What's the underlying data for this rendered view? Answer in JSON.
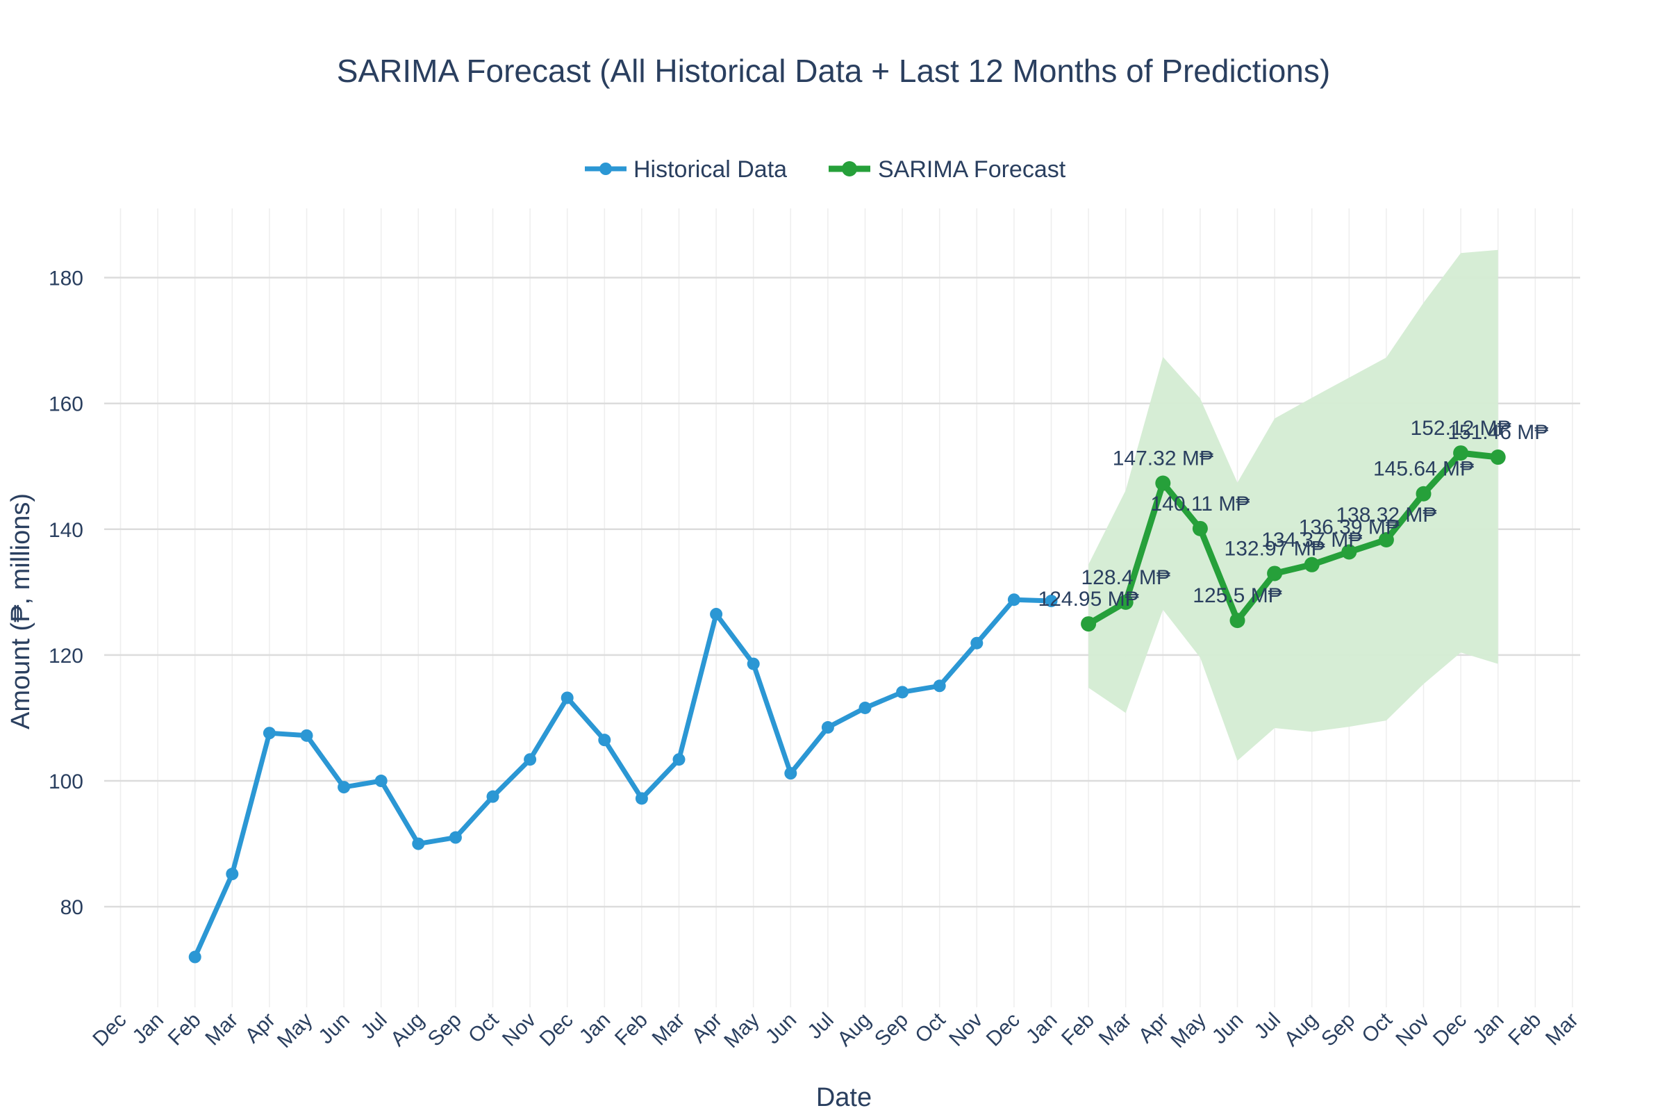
{
  "chart_data": {
    "type": "line",
    "title": "SARIMA Forecast (All Historical Data + Last 12 Months of Predictions)",
    "xlabel": "Date",
    "ylabel": "Amount (₱, millions)",
    "legend_position": "top-center",
    "grid": true,
    "xlim": [
      "2022-12",
      "2026-03"
    ],
    "ylim": [
      64,
      191
    ],
    "x_ticks": [
      "Dec",
      "Jan",
      "Feb",
      "Mar",
      "Apr",
      "May",
      "Jun",
      "Jul",
      "Aug",
      "Sep",
      "Oct",
      "Nov",
      "Dec",
      "Jan",
      "Feb",
      "Mar",
      "Apr",
      "May",
      "Jun",
      "Jul",
      "Aug",
      "Sep",
      "Oct",
      "Nov",
      "Dec",
      "Jan",
      "Feb",
      "Mar",
      "Apr",
      "May",
      "Jun",
      "Jul",
      "Aug",
      "Sep",
      "Oct",
      "Nov",
      "Dec",
      "Jan",
      "Feb",
      "Mar"
    ],
    "y_ticks": [
      80,
      100,
      120,
      140,
      160,
      180
    ],
    "colors": {
      "historical": "#2b97d4",
      "forecast": "#26a03a",
      "band": "#d4ecd3",
      "grid": "#dcdcdc",
      "minor_grid": "#eeeeee",
      "text": "#2a3f5f"
    },
    "series": [
      {
        "name": "Historical Data",
        "x": [
          "2023-02",
          "2023-03",
          "2023-04",
          "2023-05",
          "2023-06",
          "2023-07",
          "2023-08",
          "2023-09",
          "2023-10",
          "2023-11",
          "2023-12",
          "2024-01",
          "2024-02",
          "2024-03",
          "2024-04",
          "2024-05",
          "2024-06",
          "2024-07",
          "2024-08",
          "2024-09",
          "2024-10",
          "2024-11",
          "2024-12",
          "2025-01"
        ],
        "y": [
          72,
          85.2,
          107.6,
          107.2,
          99,
          100,
          90,
          91,
          97.5,
          103.4,
          113.2,
          106.5,
          97.2,
          103.4,
          126.5,
          118.6,
          101.2,
          108.5,
          111.6,
          114.1,
          115.1,
          121.9,
          128.8,
          128.6
        ]
      },
      {
        "name": "SARIMA Forecast",
        "x": [
          "2025-02",
          "2025-03",
          "2025-04",
          "2025-05",
          "2025-06",
          "2025-07",
          "2025-08",
          "2025-09",
          "2025-10",
          "2025-11",
          "2025-12",
          "2026-01"
        ],
        "y": [
          124.95,
          128.4,
          147.32,
          140.11,
          125.5,
          132.97,
          134.37,
          136.39,
          138.32,
          145.64,
          152.12,
          151.46
        ],
        "labels": [
          "124.95 M₱",
          "128.4 M₱",
          "147.32 M₱",
          "140.11 M₱",
          "125.5 M₱",
          "132.97 M₱",
          "134.37 M₱",
          "136.39 M₱",
          "138.32 M₱",
          "145.64 M₱",
          "152.12 M₱",
          "151.46 M₱"
        ],
        "lower": [
          114.8,
          110.8,
          127.2,
          119.6,
          103.2,
          108.4,
          107.8,
          108.6,
          109.6,
          115.4,
          120.4,
          118.6
        ],
        "upper": [
          134.4,
          146.2,
          167.4,
          160.8,
          147.4,
          157.6,
          160.9,
          164.1,
          167.3,
          176.0,
          183.9,
          184.4
        ]
      }
    ]
  }
}
